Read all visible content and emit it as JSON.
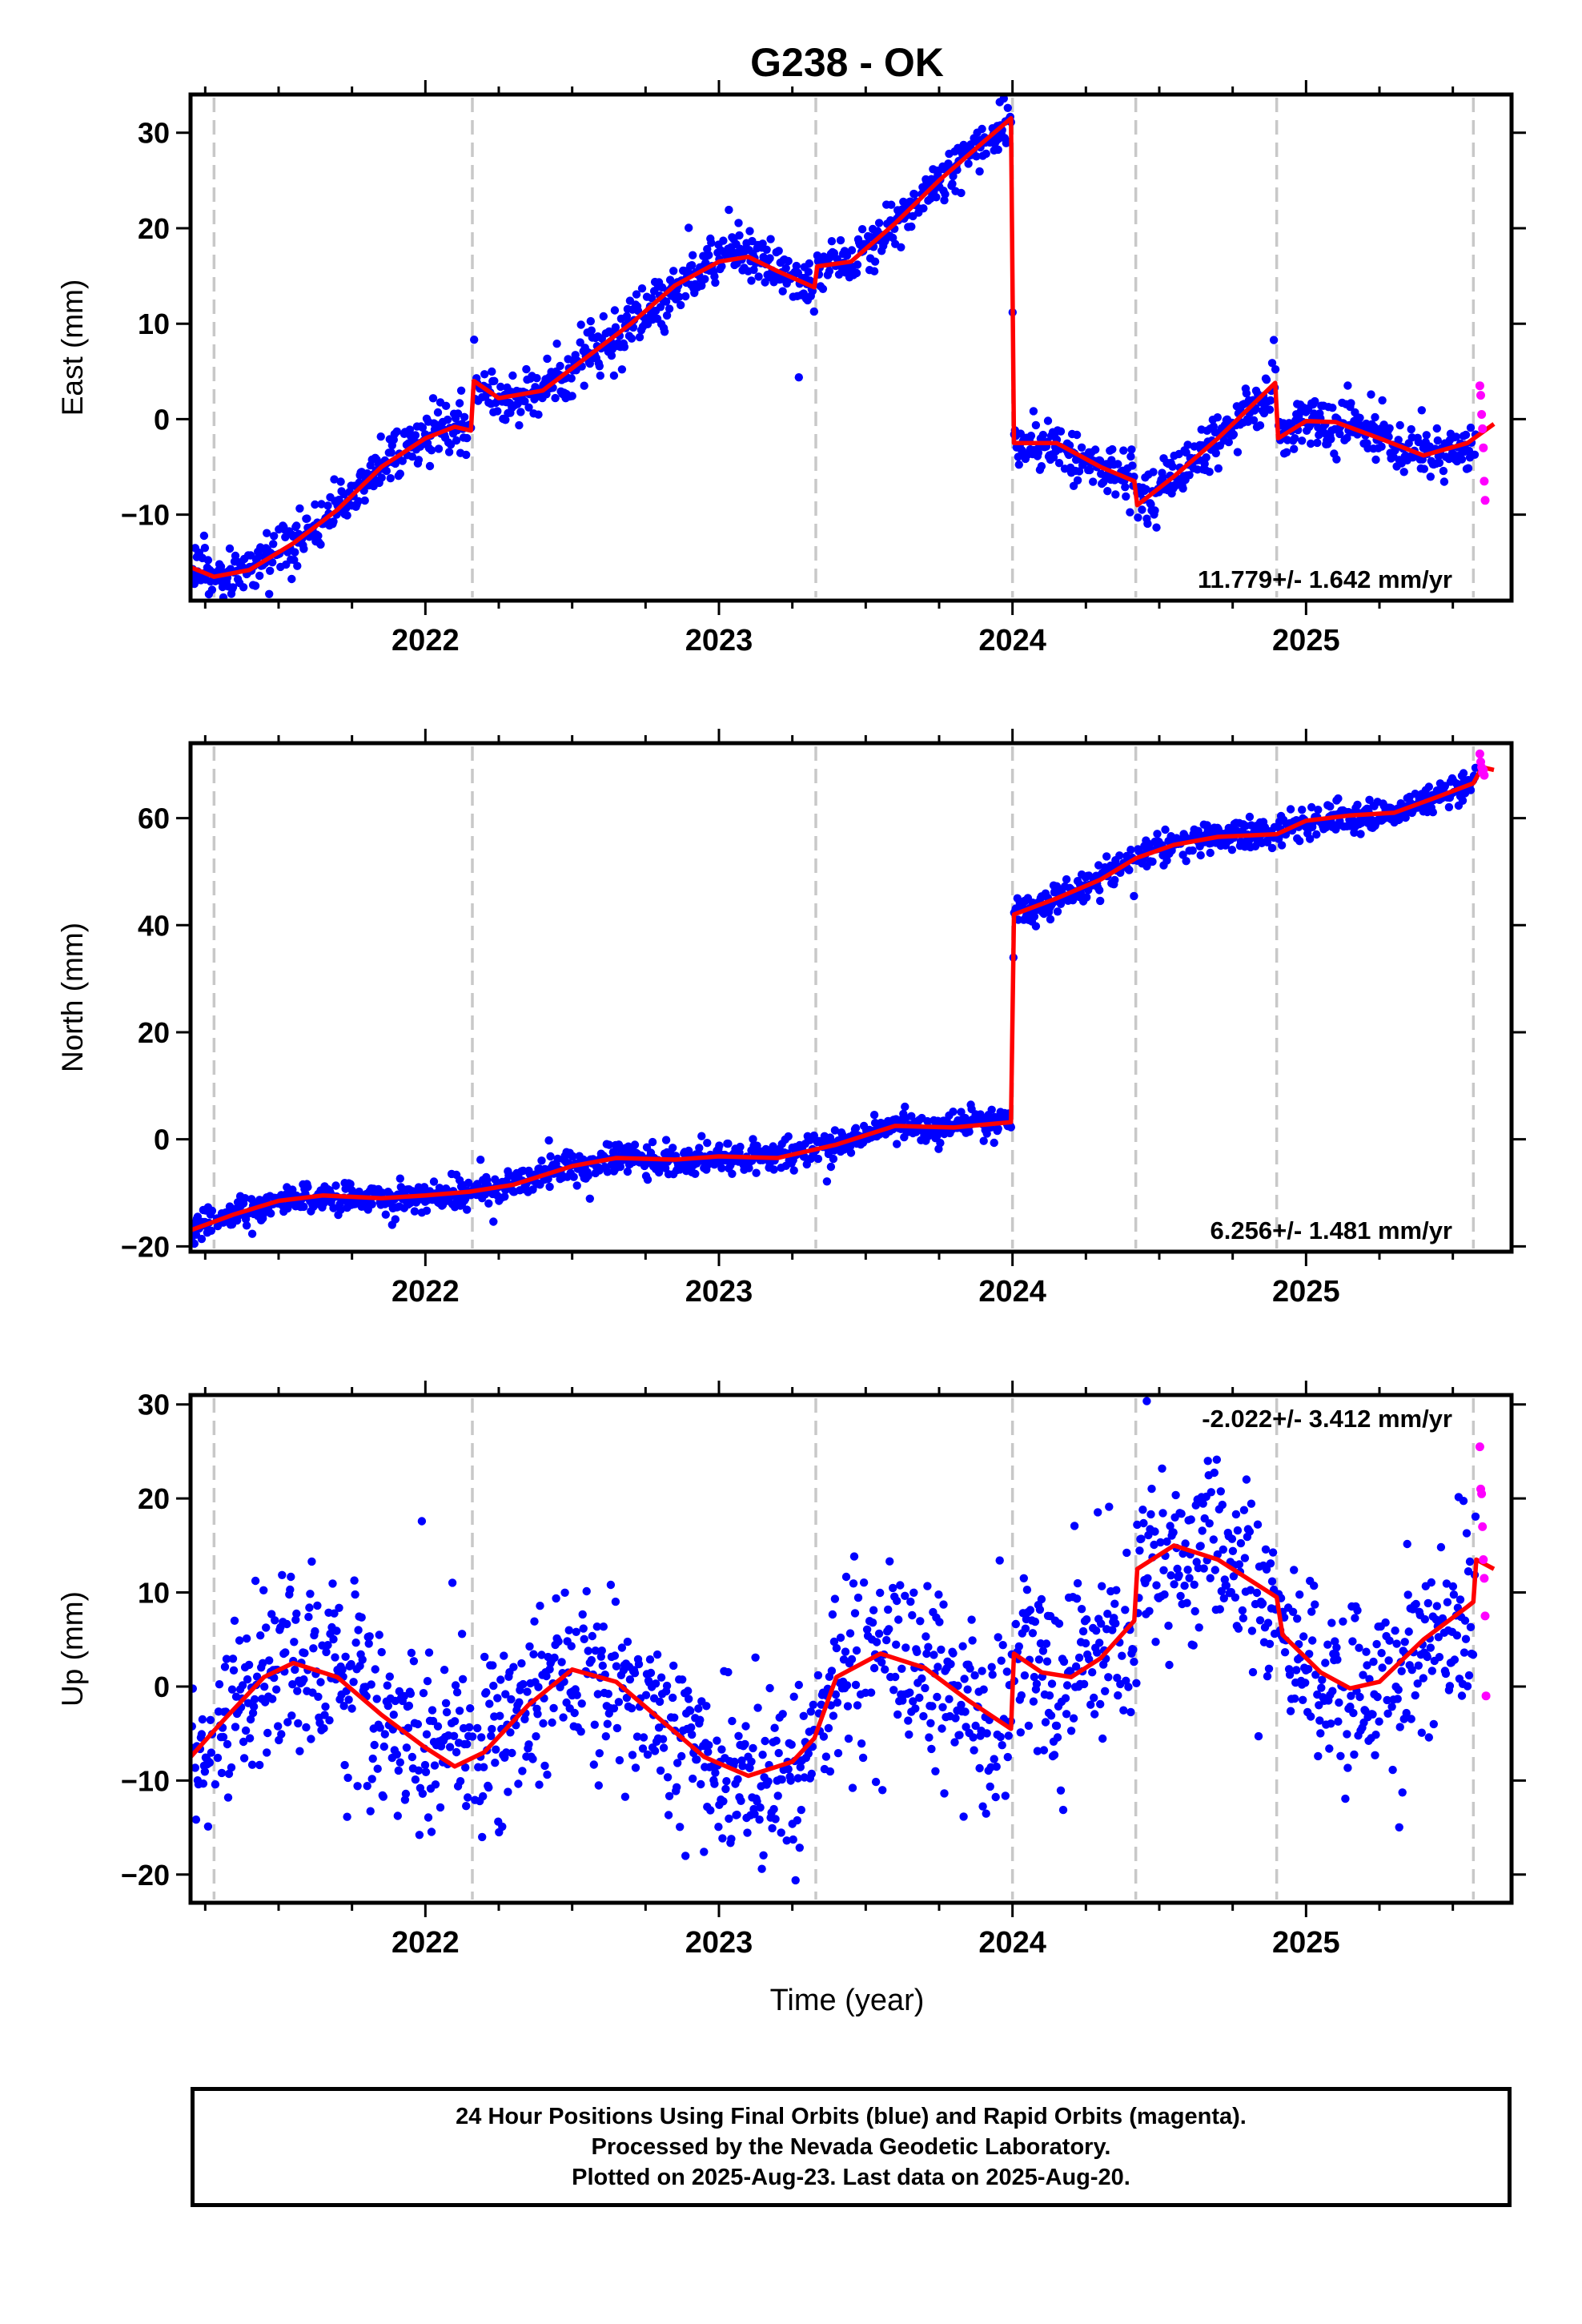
{
  "chart_data": {
    "type": "scatter",
    "title": "G238 - OK",
    "xlabel": "Time (year)",
    "x_range": [
      2021.2,
      2025.7
    ],
    "x_ticks": [
      2022,
      2023,
      2024,
      2025
    ],
    "breaks": [
      2021.28,
      2022.16,
      2023.33,
      2024.0,
      2024.42,
      2024.9,
      2025.57
    ],
    "rapid_start": 2025.58,
    "last_data": 2025.64,
    "colors": {
      "final": "#0000ff",
      "rapid": "#ff00ff",
      "model": "#ff0000",
      "break": "#c8c8c8"
    },
    "panels": [
      {
        "name": "east",
        "ylabel": "East (mm)",
        "ylim": [
          -19,
          34
        ],
        "yticks": [
          -10,
          0,
          10,
          20,
          30
        ],
        "velocity": "11.779+/- 1.642 mm/yr",
        "velocity_position": "bottom-right",
        "noise": 1.3,
        "model": [
          [
            2021.2,
            -15.5
          ],
          [
            2021.28,
            -16.5
          ],
          [
            2021.4,
            -15.8
          ],
          [
            2021.55,
            -13.0
          ],
          [
            2021.7,
            -9.5
          ],
          [
            2021.85,
            -5.0
          ],
          [
            2022.0,
            -2.0
          ],
          [
            2022.1,
            -0.8
          ],
          [
            2022.155,
            -1.2
          ],
          [
            2022.165,
            4.0
          ],
          [
            2022.25,
            2.2
          ],
          [
            2022.4,
            3.0
          ],
          [
            2022.55,
            6.5
          ],
          [
            2022.7,
            10.0
          ],
          [
            2022.85,
            14.0
          ],
          [
            2023.0,
            16.5
          ],
          [
            2023.1,
            17.0
          ],
          [
            2023.2,
            15.5
          ],
          [
            2023.325,
            13.8
          ],
          [
            2023.335,
            16.0
          ],
          [
            2023.45,
            16.5
          ],
          [
            2023.6,
            20.5
          ],
          [
            2023.75,
            25.0
          ],
          [
            2023.9,
            29.0
          ],
          [
            2023.995,
            31.5
          ],
          [
            2024.005,
            -2.5
          ],
          [
            2024.15,
            -2.5
          ],
          [
            2024.3,
            -5.0
          ],
          [
            2024.415,
            -6.5
          ],
          [
            2024.425,
            -9.0
          ],
          [
            2024.55,
            -6.0
          ],
          [
            2024.7,
            -2.0
          ],
          [
            2024.895,
            3.8
          ],
          [
            2024.905,
            -2.0
          ],
          [
            2025.0,
            -0.2
          ],
          [
            2025.1,
            -0.3
          ],
          [
            2025.25,
            -2.0
          ],
          [
            2025.4,
            -3.8
          ],
          [
            2025.55,
            -2.5
          ],
          [
            2025.64,
            -0.5
          ]
        ],
        "rapid": [
          3.5,
          2.5,
          0.5,
          -1.0,
          -3.0,
          -6.5,
          -8.5
        ]
      },
      {
        "name": "north",
        "ylabel": "North (mm)",
        "ylim": [
          -21,
          74
        ],
        "yticks": [
          -20,
          0,
          20,
          40,
          60
        ],
        "velocity": "6.256+/- 1.481 mm/yr",
        "velocity_position": "bottom-right",
        "noise": 1.4,
        "model": [
          [
            2021.2,
            -17.0
          ],
          [
            2021.35,
            -14.0
          ],
          [
            2021.5,
            -11.5
          ],
          [
            2021.65,
            -10.5
          ],
          [
            2021.85,
            -11.0
          ],
          [
            2022.0,
            -10.5
          ],
          [
            2022.15,
            -9.8
          ],
          [
            2022.3,
            -8.5
          ],
          [
            2022.5,
            -5.0
          ],
          [
            2022.65,
            -3.5
          ],
          [
            2022.85,
            -3.8
          ],
          [
            2023.0,
            -3.2
          ],
          [
            2023.2,
            -3.5
          ],
          [
            2023.4,
            -1.0
          ],
          [
            2023.6,
            2.5
          ],
          [
            2023.8,
            2.2
          ],
          [
            2023.995,
            3.2
          ],
          [
            2024.005,
            42.0
          ],
          [
            2024.15,
            45.0
          ],
          [
            2024.3,
            48.5
          ],
          [
            2024.42,
            52.5
          ],
          [
            2024.55,
            55.0
          ],
          [
            2024.7,
            56.5
          ],
          [
            2024.9,
            57.0
          ],
          [
            2025.0,
            59.5
          ],
          [
            2025.15,
            60.5
          ],
          [
            2025.3,
            61.0
          ],
          [
            2025.45,
            64.0
          ],
          [
            2025.57,
            66.5
          ],
          [
            2025.6,
            69.5
          ],
          [
            2025.64,
            69.0
          ]
        ],
        "rapid": [
          72.0,
          70.5,
          69.5,
          68.5,
          69.0,
          68.0
        ]
      },
      {
        "name": "up",
        "ylabel": "Up (mm)",
        "ylim": [
          -23,
          31
        ],
        "yticks": [
          -20,
          -10,
          0,
          10,
          20,
          30
        ],
        "velocity": "-2.022+/- 3.412 mm/yr",
        "velocity_position": "top-right",
        "noise": 4.8,
        "model": [
          [
            2021.2,
            -7.5
          ],
          [
            2021.3,
            -4.0
          ],
          [
            2021.45,
            1.0
          ],
          [
            2021.55,
            2.5
          ],
          [
            2021.7,
            1.0
          ],
          [
            2021.85,
            -3.0
          ],
          [
            2022.0,
            -6.5
          ],
          [
            2022.1,
            -8.5
          ],
          [
            2022.2,
            -7.0
          ],
          [
            2022.35,
            -2.0
          ],
          [
            2022.5,
            1.8
          ],
          [
            2022.65,
            0.5
          ],
          [
            2022.8,
            -3.5
          ],
          [
            2022.95,
            -7.5
          ],
          [
            2023.1,
            -9.5
          ],
          [
            2023.25,
            -8.0
          ],
          [
            2023.325,
            -5.5
          ],
          [
            2023.4,
            1.0
          ],
          [
            2023.55,
            3.5
          ],
          [
            2023.7,
            2.0
          ],
          [
            2023.85,
            -1.5
          ],
          [
            2023.995,
            -4.5
          ],
          [
            2024.005,
            3.5
          ],
          [
            2024.1,
            1.5
          ],
          [
            2024.2,
            1.0
          ],
          [
            2024.3,
            3.0
          ],
          [
            2024.415,
            7.0
          ],
          [
            2024.425,
            12.5
          ],
          [
            2024.55,
            15.0
          ],
          [
            2024.7,
            13.5
          ],
          [
            2024.9,
            9.5
          ],
          [
            2024.92,
            5.5
          ],
          [
            2025.05,
            1.5
          ],
          [
            2025.15,
            -0.2
          ],
          [
            2025.25,
            0.5
          ],
          [
            2025.4,
            5.0
          ],
          [
            2025.55,
            8.5
          ],
          [
            2025.57,
            9.0
          ],
          [
            2025.58,
            13.5
          ],
          [
            2025.64,
            12.5
          ]
        ],
        "rapid": [
          25.5,
          21.0,
          20.5,
          17.0,
          13.5,
          11.5,
          7.5,
          -1.0
        ]
      }
    ]
  },
  "footer": {
    "line1": "24 Hour Positions Using Final Orbits (blue) and Rapid Orbits (magenta).",
    "line2": "Processed by the Nevada Geodetic Laboratory.",
    "line3": "Plotted on 2025-Aug-23. Last data on 2025-Aug-20."
  }
}
